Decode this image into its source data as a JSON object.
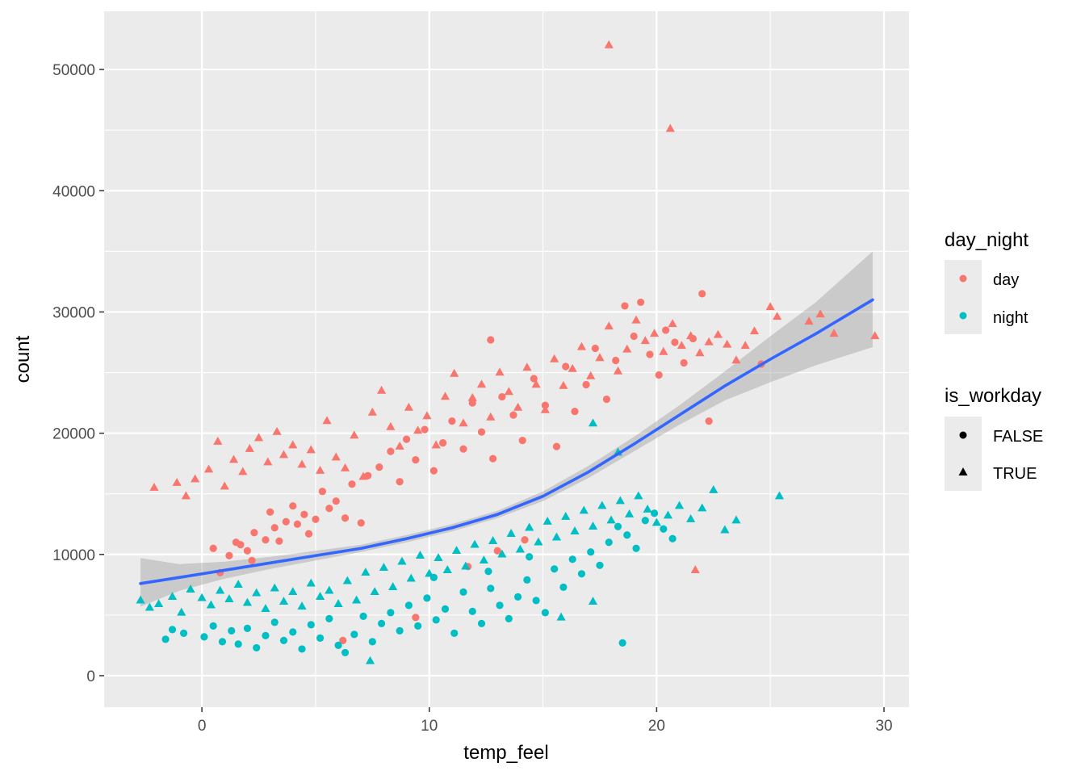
{
  "chart_data": {
    "type": "scatter",
    "title": "",
    "xlabel": "temp_feel",
    "ylabel": "count",
    "xlim": [
      -4.3,
      31.1
    ],
    "ylim": [
      -2600,
      54800
    ],
    "x_ticks": [
      0,
      10,
      20,
      30
    ],
    "y_ticks": [
      0,
      10000,
      20000,
      30000,
      40000,
      50000
    ],
    "x_tick_labels": [
      "0",
      "10",
      "20",
      "30"
    ],
    "y_tick_labels": [
      "0",
      "10000",
      "20000",
      "30000",
      "40000",
      "50000"
    ],
    "grid": true,
    "background": "#ebebeb",
    "legend_position": "right",
    "legends": [
      {
        "title": "day_night",
        "entries": [
          {
            "label": "day",
            "color": "#f8766d",
            "shape": "circle"
          },
          {
            "label": "night",
            "color": "#00bfc4",
            "shape": "circle"
          }
        ]
      },
      {
        "title": "is_workday",
        "entries": [
          {
            "label": "FALSE",
            "color": "#000000",
            "shape": "circle"
          },
          {
            "label": "TRUE",
            "color": "#000000",
            "shape": "triangle"
          }
        ]
      }
    ],
    "series": [
      {
        "color": "#f8766d",
        "points_false": [
          [
            0.5,
            10500
          ],
          [
            0.8,
            8500
          ],
          [
            1.2,
            9900
          ],
          [
            1.5,
            11000
          ],
          [
            1.7,
            10800
          ],
          [
            2,
            10300
          ],
          [
            2.2,
            9500
          ],
          [
            2.3,
            11800
          ],
          [
            2.8,
            11200
          ],
          [
            3,
            13500
          ],
          [
            3.2,
            12200
          ],
          [
            3.4,
            11100
          ],
          [
            3.7,
            12700
          ],
          [
            4,
            14000
          ],
          [
            4.2,
            12500
          ],
          [
            4.5,
            13300
          ],
          [
            4.7,
            11700
          ],
          [
            5,
            12900
          ],
          [
            5.3,
            15200
          ],
          [
            5.6,
            13800
          ],
          [
            5.9,
            14400
          ],
          [
            6.3,
            13000
          ],
          [
            6.6,
            15800
          ],
          [
            7,
            12600
          ],
          [
            7.3,
            16500
          ],
          [
            7.8,
            17200
          ],
          [
            8.3,
            18500
          ],
          [
            8.7,
            16000
          ],
          [
            9,
            19500
          ],
          [
            9.4,
            17800
          ],
          [
            9.8,
            20300
          ],
          [
            10.2,
            16900
          ],
          [
            10.6,
            19200
          ],
          [
            11,
            21000
          ],
          [
            11.5,
            18700
          ],
          [
            11.9,
            22500
          ],
          [
            12.3,
            20100
          ],
          [
            12.8,
            17900
          ],
          [
            13.2,
            23000
          ],
          [
            13.7,
            21500
          ],
          [
            14.1,
            19400
          ],
          [
            14.6,
            24500
          ],
          [
            15.1,
            22300
          ],
          [
            15.6,
            18900
          ],
          [
            16,
            25500
          ],
          [
            16.4,
            21800
          ],
          [
            16.9,
            24000
          ],
          [
            17.3,
            27000
          ],
          [
            17.8,
            22800
          ],
          [
            18.2,
            26000
          ],
          [
            18.6,
            30500
          ],
          [
            19,
            28000
          ],
          [
            19.3,
            30800
          ],
          [
            19.7,
            26500
          ],
          [
            20.1,
            24800
          ],
          [
            20.4,
            28500
          ],
          [
            20.8,
            27500
          ],
          [
            21.2,
            25800
          ],
          [
            21.6,
            27800
          ],
          [
            22,
            31500
          ],
          [
            22.3,
            21000
          ],
          [
            24.6,
            25700
          ],
          [
            12.7,
            27700
          ],
          [
            6.2,
            2900
          ],
          [
            9.4,
            4800
          ],
          [
            11.7,
            9000
          ],
          [
            13,
            10300
          ],
          [
            14.2,
            11200
          ]
        ],
        "points_true": [
          [
            -2.1,
            15500
          ],
          [
            -1.1,
            15900
          ],
          [
            -0.7,
            14800
          ],
          [
            -0.3,
            16200
          ],
          [
            0.3,
            17000
          ],
          [
            0.7,
            19300
          ],
          [
            1,
            15600
          ],
          [
            1.4,
            17800
          ],
          [
            1.8,
            16800
          ],
          [
            2.1,
            18700
          ],
          [
            2.5,
            19600
          ],
          [
            2.9,
            17600
          ],
          [
            3.3,
            20100
          ],
          [
            3.6,
            18200
          ],
          [
            4,
            19000
          ],
          [
            4.4,
            17400
          ],
          [
            4.8,
            18600
          ],
          [
            5.2,
            16900
          ],
          [
            5.5,
            21000
          ],
          [
            5.9,
            18000
          ],
          [
            6.3,
            17100
          ],
          [
            6.7,
            19800
          ],
          [
            7.1,
            16400
          ],
          [
            7.5,
            21700
          ],
          [
            7.9,
            23500
          ],
          [
            8.3,
            20500
          ],
          [
            8.7,
            18900
          ],
          [
            9.1,
            22100
          ],
          [
            9.5,
            20200
          ],
          [
            9.9,
            21400
          ],
          [
            10.3,
            19000
          ],
          [
            10.7,
            23000
          ],
          [
            11.1,
            24900
          ],
          [
            11.5,
            20800
          ],
          [
            11.9,
            22900
          ],
          [
            12.3,
            24000
          ],
          [
            12.7,
            21300
          ],
          [
            13.1,
            25000
          ],
          [
            13.5,
            23400
          ],
          [
            13.9,
            22100
          ],
          [
            14.3,
            25400
          ],
          [
            14.7,
            24000
          ],
          [
            15.1,
            21900
          ],
          [
            15.5,
            26100
          ],
          [
            15.9,
            23900
          ],
          [
            16.3,
            25300
          ],
          [
            16.7,
            27100
          ],
          [
            17.1,
            24700
          ],
          [
            17.5,
            26200
          ],
          [
            17.9,
            28800
          ],
          [
            18.3,
            25100
          ],
          [
            18.7,
            26900
          ],
          [
            19.1,
            29300
          ],
          [
            19.5,
            27600
          ],
          [
            19.9,
            28200
          ],
          [
            20.3,
            26700
          ],
          [
            20.7,
            29000
          ],
          [
            21.1,
            27200
          ],
          [
            21.5,
            28000
          ],
          [
            21.9,
            26600
          ],
          [
            22.3,
            27500
          ],
          [
            22.7,
            28100
          ],
          [
            23.1,
            27300
          ],
          [
            23.5,
            26000
          ],
          [
            23.9,
            27200
          ],
          [
            24.3,
            28400
          ],
          [
            25,
            30400
          ],
          [
            25.3,
            29600
          ],
          [
            26.7,
            29200
          ],
          [
            27.2,
            29800
          ],
          [
            27.8,
            28200
          ],
          [
            29.6,
            28000
          ],
          [
            21.7,
            8700
          ],
          [
            17.9,
            52000
          ],
          [
            20.6,
            45100
          ]
        ]
      },
      {
        "color": "#00bfc4",
        "points_false": [
          [
            -1.6,
            3000
          ],
          [
            -1.3,
            3800
          ],
          [
            -0.8,
            3500
          ],
          [
            0.1,
            3200
          ],
          [
            0.5,
            4100
          ],
          [
            0.9,
            2800
          ],
          [
            1.3,
            3700
          ],
          [
            1.6,
            2600
          ],
          [
            2,
            3900
          ],
          [
            2.4,
            2300
          ],
          [
            2.8,
            3300
          ],
          [
            3.2,
            4400
          ],
          [
            3.6,
            2900
          ],
          [
            4,
            3600
          ],
          [
            4.4,
            2200
          ],
          [
            4.8,
            4200
          ],
          [
            5.2,
            3100
          ],
          [
            5.6,
            4700
          ],
          [
            6,
            2500
          ],
          [
            6.3,
            1900
          ],
          [
            6.7,
            3400
          ],
          [
            7.1,
            4900
          ],
          [
            7.5,
            2800
          ],
          [
            7.9,
            4300
          ],
          [
            8.3,
            5200
          ],
          [
            8.7,
            3700
          ],
          [
            9.1,
            5800
          ],
          [
            9.5,
            4100
          ],
          [
            9.9,
            6400
          ],
          [
            10.3,
            4600
          ],
          [
            10.7,
            5500
          ],
          [
            11.1,
            3500
          ],
          [
            11.5,
            6900
          ],
          [
            11.9,
            5300
          ],
          [
            12.3,
            4300
          ],
          [
            12.7,
            7200
          ],
          [
            13.1,
            5800
          ],
          [
            13.5,
            4700
          ],
          [
            13.9,
            6500
          ],
          [
            14.3,
            7900
          ],
          [
            14.7,
            6200
          ],
          [
            15.1,
            5200
          ],
          [
            15.5,
            8800
          ],
          [
            15.9,
            7300
          ],
          [
            16.3,
            9600
          ],
          [
            16.7,
            8400
          ],
          [
            17.1,
            10200
          ],
          [
            17.5,
            9100
          ],
          [
            17.9,
            11000
          ],
          [
            18.3,
            12300
          ],
          [
            18.7,
            11600
          ],
          [
            19.1,
            10500
          ],
          [
            19.5,
            12800
          ],
          [
            19.9,
            13400
          ],
          [
            20.3,
            12100
          ],
          [
            20.7,
            11300
          ],
          [
            18.5,
            2700
          ],
          [
            10.2,
            8100
          ],
          [
            12.6,
            8600
          ],
          [
            14.4,
            9800
          ]
        ],
        "points_true": [
          [
            -2.7,
            6200
          ],
          [
            -2.3,
            5600
          ],
          [
            -1.9,
            5900
          ],
          [
            -1.3,
            6500
          ],
          [
            -0.9,
            5200
          ],
          [
            -0.5,
            7100
          ],
          [
            0,
            6400
          ],
          [
            0.4,
            5800
          ],
          [
            0.8,
            7000
          ],
          [
            1.2,
            6300
          ],
          [
            1.6,
            7500
          ],
          [
            2,
            6000
          ],
          [
            2.4,
            6800
          ],
          [
            2.8,
            5500
          ],
          [
            3.2,
            7200
          ],
          [
            3.6,
            6100
          ],
          [
            4,
            6900
          ],
          [
            4.4,
            5700
          ],
          [
            4.8,
            7600
          ],
          [
            5.2,
            6500
          ],
          [
            5.6,
            7000
          ],
          [
            6,
            5900
          ],
          [
            6.4,
            7800
          ],
          [
            6.8,
            6200
          ],
          [
            7.2,
            8500
          ],
          [
            7.6,
            6900
          ],
          [
            8,
            8900
          ],
          [
            8.4,
            7300
          ],
          [
            8.8,
            9400
          ],
          [
            9.2,
            8000
          ],
          [
            9.6,
            9900
          ],
          [
            10,
            8400
          ],
          [
            10.4,
            9700
          ],
          [
            10.8,
            8700
          ],
          [
            11.2,
            10300
          ],
          [
            11.6,
            9000
          ],
          [
            12,
            10800
          ],
          [
            12.4,
            9500
          ],
          [
            12.8,
            11100
          ],
          [
            13.2,
            10000
          ],
          [
            13.6,
            11700
          ],
          [
            14,
            10400
          ],
          [
            14.4,
            12200
          ],
          [
            14.8,
            11000
          ],
          [
            15.2,
            12700
          ],
          [
            15.6,
            11400
          ],
          [
            16,
            13100
          ],
          [
            16.4,
            11900
          ],
          [
            16.8,
            13600
          ],
          [
            17.2,
            12300
          ],
          [
            17.6,
            14000
          ],
          [
            18,
            12800
          ],
          [
            18.4,
            14400
          ],
          [
            18.8,
            13300
          ],
          [
            19.2,
            14800
          ],
          [
            19.6,
            13700
          ],
          [
            20,
            12600
          ],
          [
            20.5,
            13200
          ],
          [
            21,
            14000
          ],
          [
            21.5,
            12900
          ],
          [
            22,
            13800
          ],
          [
            22.5,
            15300
          ],
          [
            23,
            12000
          ],
          [
            23.5,
            12800
          ],
          [
            25.4,
            14800
          ],
          [
            17.2,
            20800
          ],
          [
            18.3,
            18400
          ],
          [
            7.4,
            1200
          ],
          [
            15.8,
            4800
          ],
          [
            17.2,
            6100
          ]
        ]
      }
    ],
    "smooth": {
      "color": "#3366ff",
      "x": [
        -2.7,
        -1,
        1,
        3,
        5,
        7,
        9,
        11,
        13,
        15,
        17,
        19,
        21,
        23,
        25,
        27,
        29.5
      ],
      "y": [
        7600,
        8100,
        8700,
        9300,
        9900,
        10500,
        11300,
        12200,
        13300,
        14800,
        16800,
        19100,
        21500,
        23900,
        26100,
        28200,
        31000
      ],
      "ci_low": [
        5700,
        7000,
        8000,
        8800,
        9500,
        10200,
        11000,
        11900,
        13000,
        14400,
        16300,
        18500,
        20700,
        22700,
        24200,
        25600,
        27100
      ],
      "ci_high": [
        9700,
        9200,
        9400,
        9800,
        10300,
        10800,
        11600,
        12500,
        13600,
        15200,
        17300,
        19700,
        22300,
        25100,
        28000,
        30800,
        35000
      ]
    }
  }
}
